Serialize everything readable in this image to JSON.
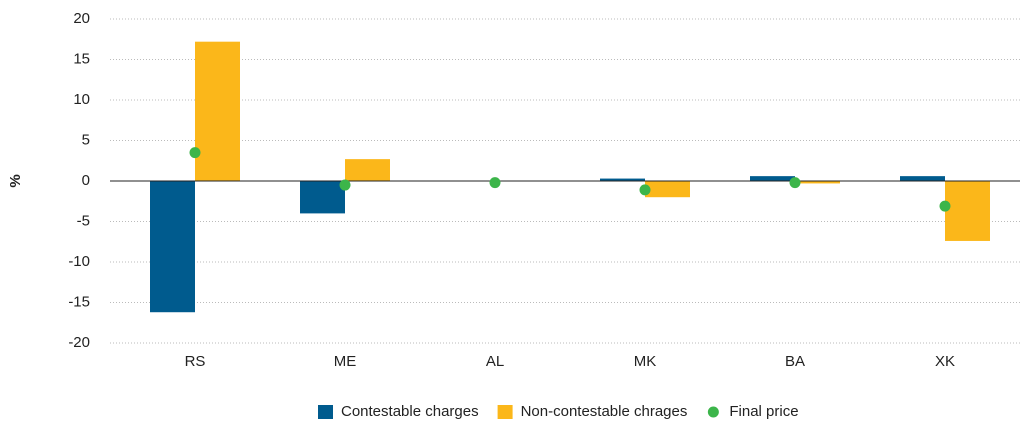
{
  "chart_data": {
    "type": "bar",
    "y_label": "%",
    "categories": [
      "RS",
      "ME",
      "AL",
      "MK",
      "BA",
      "XK"
    ],
    "series": [
      {
        "name": "Contestable charges",
        "color": "#005b8e",
        "type": "bar",
        "values": [
          -16.2,
          -4.0,
          0,
          0.3,
          0.6,
          0.6
        ]
      },
      {
        "name": "Non-contestable chrages",
        "color": "#fbb71a",
        "type": "bar",
        "values": [
          17.2,
          2.7,
          0,
          -2.0,
          -0.3,
          -7.4
        ]
      },
      {
        "name": "Final price",
        "color": "#3cb54a",
        "type": "point",
        "values": [
          3.5,
          -0.5,
          -0.2,
          -1.1,
          -0.2,
          -3.1
        ]
      }
    ],
    "ylim": [
      -20,
      20
    ],
    "yticks": [
      -20,
      -15,
      -10,
      -5,
      0,
      5,
      10,
      15,
      20
    ],
    "grid": true
  }
}
